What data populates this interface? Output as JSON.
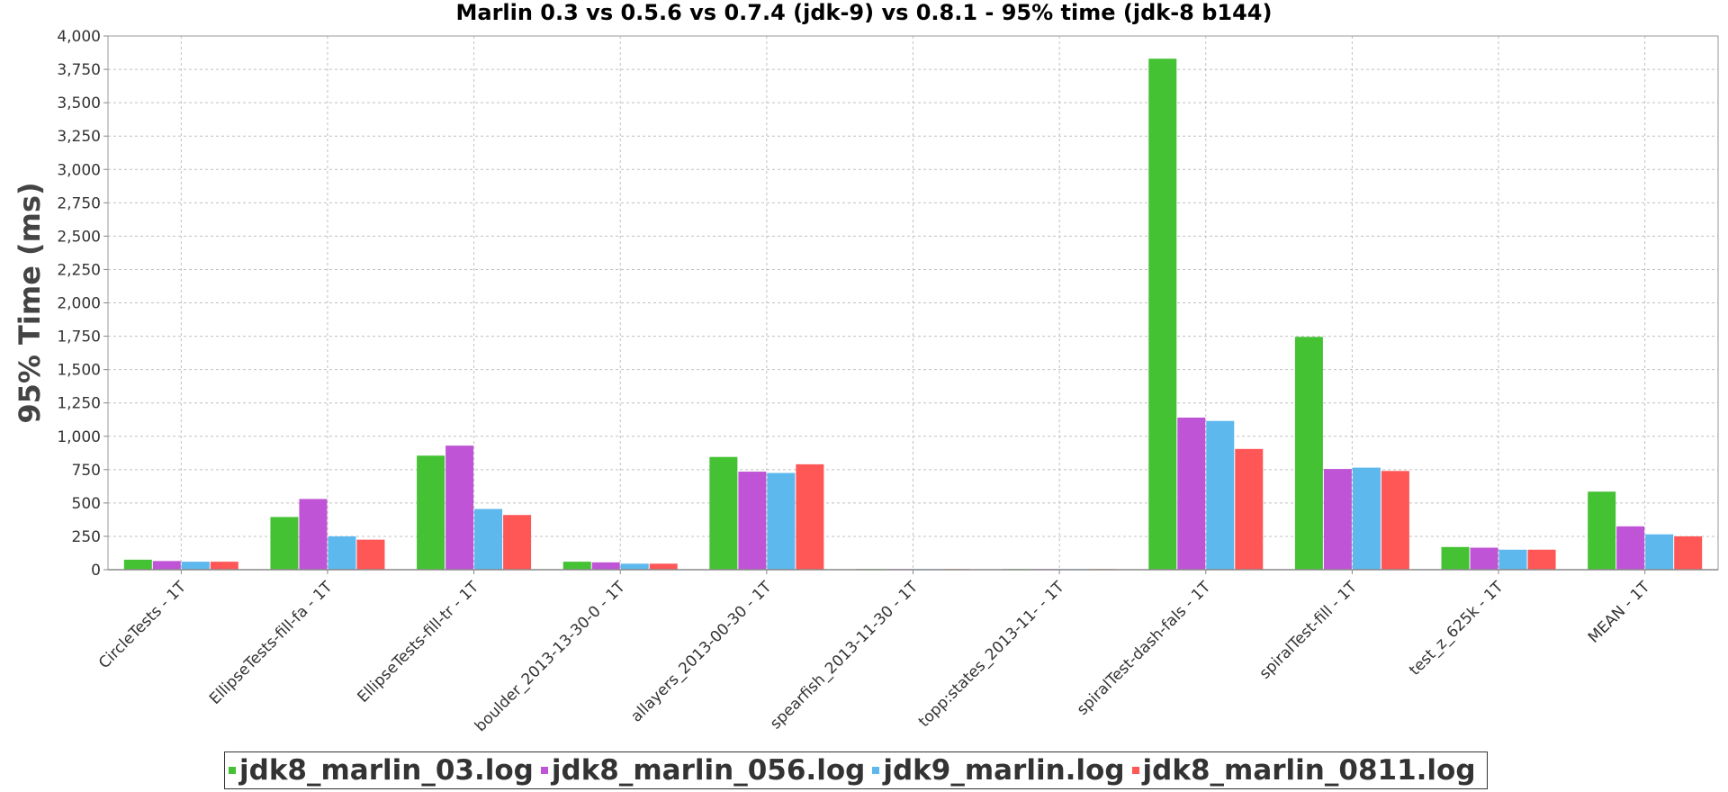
{
  "chart_data": {
    "type": "bar",
    "title": "Marlin 0.3 vs 0.5.6 vs 0.7.4 (jdk-9) vs 0.8.1 - 95% time (jdk-8 b144)",
    "xlabel": "",
    "ylabel": "95% Time (ms)",
    "ylim": [
      0,
      4000
    ],
    "yticks": [
      "0",
      "250",
      "500",
      "750",
      "1,000",
      "1,250",
      "1,500",
      "1,750",
      "2,000",
      "2,250",
      "2,500",
      "2,750",
      "3,000",
      "3,250",
      "3,500",
      "3,750",
      "4,000"
    ],
    "grid": true,
    "legend_position": "bottom",
    "categories": [
      "CircleTests - 1T",
      "EllipseTests-fill-fa - 1T",
      "EllipseTests-fill-tr - 1T",
      "boulder_2013-13-30-0 - 1T",
      "allayers_2013-00-30 - 1T",
      "spearfish_2013-11-30 - 1T",
      "topp:states_2013-11- - 1T",
      "spiralTest-dash-fals - 1T",
      "spiralTest-fill - 1T",
      "test_z_625k - 1T",
      "MEAN - 1T"
    ],
    "series": [
      {
        "name": "jdk8_marlin_03.log",
        "color": "#44c233",
        "values": [
          75,
          395,
          855,
          60,
          845,
          5,
          5,
          3830,
          1745,
          170,
          585
        ]
      },
      {
        "name": "jdk8_marlin_056.log",
        "color": "#bf55d6",
        "values": [
          65,
          530,
          930,
          55,
          735,
          5,
          5,
          1140,
          755,
          165,
          325
        ]
      },
      {
        "name": "jdk9_marlin.log",
        "color": "#5db8ee",
        "values": [
          60,
          250,
          455,
          45,
          725,
          5,
          5,
          1115,
          765,
          150,
          265
        ]
      },
      {
        "name": "jdk8_marlin_0811.log",
        "color": "#ff5656",
        "values": [
          60,
          225,
          410,
          45,
          790,
          5,
          5,
          905,
          740,
          150,
          250
        ]
      }
    ]
  }
}
